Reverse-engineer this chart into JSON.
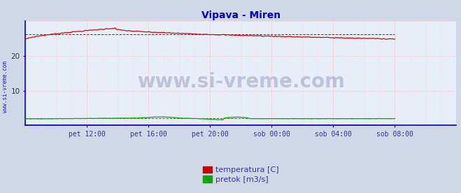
{
  "title": "Vipava - Miren",
  "title_color": "#0000cc",
  "bg_color": "#d0d8e8",
  "plot_bg_color": "#e8eef8",
  "watermark": "www.si-vreme.com",
  "x_tick_labels": [
    "pet 12:00",
    "pet 16:00",
    "pet 20:00",
    "sob 00:00",
    "sob 04:00",
    "sob 08:00"
  ],
  "x_tick_positions": [
    48,
    96,
    144,
    192,
    240,
    288
  ],
  "xlim": [
    0,
    336
  ],
  "ylim": [
    0,
    30
  ],
  "yticks": [
    10,
    20
  ],
  "temp_color": "#dd0000",
  "flow_color": "#00aa00",
  "height_color": "#0000cc",
  "grid_color": "#ffaaaa",
  "grid_minor_color": "#ffcccc",
  "legend_labels": [
    "temperatura [C]",
    "pretok [m3/s]"
  ],
  "legend_colors": [
    "#cc0000",
    "#00aa00"
  ],
  "side_label": "www.si-vreme.com",
  "side_label_color": "#0000aa",
  "temp_avg_value": 26.2,
  "flow_avg_value": 2.0,
  "n_points": 289
}
